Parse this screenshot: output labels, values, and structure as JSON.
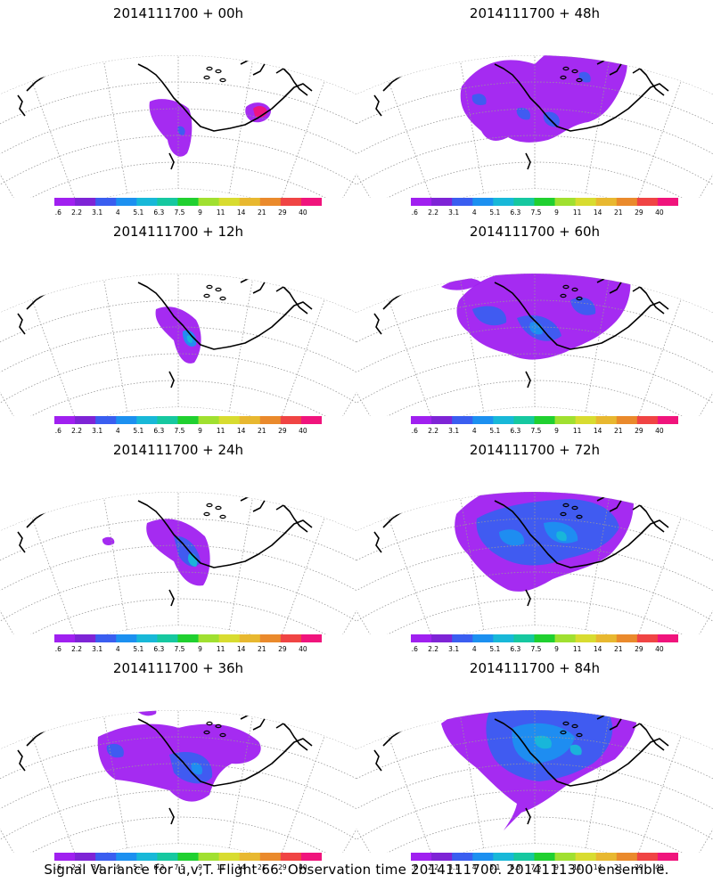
{
  "panels": [
    {
      "title": "2014111700 + 00h",
      "hour": 0
    },
    {
      "title": "2014111700 + 48h",
      "hour": 48
    },
    {
      "title": "2014111700 + 12h",
      "hour": 12
    },
    {
      "title": "2014111700 + 60h",
      "hour": 60
    },
    {
      "title": "2014111700 + 24h",
      "hour": 24
    },
    {
      "title": "2014111700 + 72h",
      "hour": 72
    },
    {
      "title": "2014111700 + 36h",
      "hour": 36
    },
    {
      "title": "2014111700 + 84h",
      "hour": 84
    }
  ],
  "colorbar": {
    "labels": [
      "1.6",
      "2.2",
      "3.1",
      "4",
      "5.1",
      "6.3",
      "7.5",
      "9",
      "11",
      "14",
      "21",
      "29",
      "40"
    ],
    "colors": [
      "#a020f0",
      "#7e24d6",
      "#3a5ef0",
      "#1c90f0",
      "#18b8d8",
      "#16c8a0",
      "#20d030",
      "#a0e030",
      "#d8dc30",
      "#e8b830",
      "#ea8a2c",
      "#f04444",
      "#f0147c"
    ]
  },
  "footer": "Signal Variance for u,v,T. Flight 66. Observation time 2014111700. 2014111300 ensemble."
}
